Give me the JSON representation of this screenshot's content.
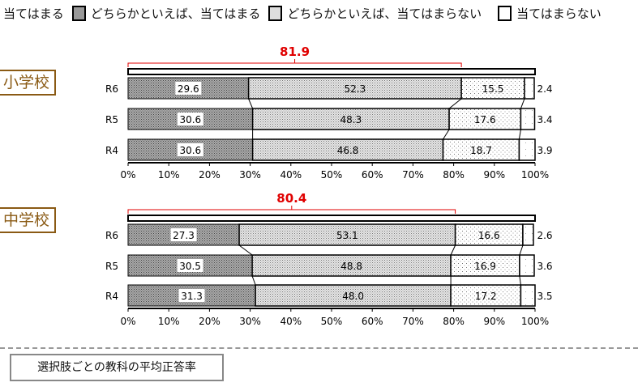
{
  "legend": [
    "当てはまる",
    "どちらかといえば、当てはまる",
    "どちらかといえば、当てはまらない",
    "当てはまらない"
  ],
  "footer": {
    "box_label": "選択肢ごとの教科の平均正答率"
  },
  "chart_data": [
    {
      "type": "bar",
      "orientation": "horizontal",
      "stacked": true,
      "title": "小学校",
      "categories": [
        "R6",
        "R5",
        "R4"
      ],
      "series": [
        {
          "name": "当てはまる",
          "values": [
            29.6,
            30.6,
            30.6
          ]
        },
        {
          "name": "どちらかといえば、当てはまる",
          "values": [
            52.3,
            48.3,
            46.8
          ]
        },
        {
          "name": "どちらかといえば、当てはまらない",
          "values": [
            15.5,
            17.6,
            18.7
          ]
        },
        {
          "name": "当てはまらない",
          "values": [
            2.4,
            3.4,
            3.9
          ]
        }
      ],
      "bracket_total": "81.9",
      "xlim": [
        0,
        100
      ],
      "xticks": [
        "0%",
        "10%",
        "20%",
        "30%",
        "40%",
        "50%",
        "60%",
        "70%",
        "80%",
        "90%",
        "100%"
      ]
    },
    {
      "type": "bar",
      "orientation": "horizontal",
      "stacked": true,
      "title": "中学校",
      "categories": [
        "R6",
        "R5",
        "R4"
      ],
      "series": [
        {
          "name": "当てはまる",
          "values": [
            27.3,
            30.5,
            31.3
          ]
        },
        {
          "name": "どちらかといえば、当てはまる",
          "values": [
            53.1,
            48.8,
            48.0
          ]
        },
        {
          "name": "どちらかといえば、当てはまらない",
          "values": [
            16.6,
            16.9,
            17.2
          ]
        },
        {
          "name": "当てはまらない",
          "values": [
            2.6,
            3.6,
            3.5
          ]
        }
      ],
      "bracket_total": "80.4",
      "xlim": [
        0,
        100
      ],
      "xticks": [
        "0%",
        "10%",
        "20%",
        "30%",
        "40%",
        "50%",
        "60%",
        "70%",
        "80%",
        "90%",
        "100%"
      ]
    }
  ],
  "colors": {
    "bracket": "#e00000",
    "school": "#8a5a14"
  }
}
